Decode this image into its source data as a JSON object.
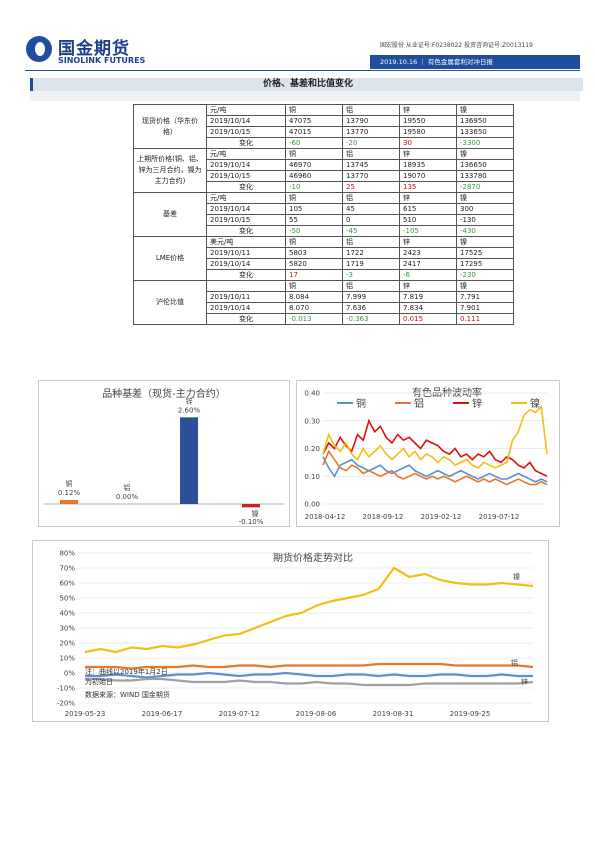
{
  "header": {
    "logo_cn": "国金期货",
    "logo_en": "SINOLINK FUTURES",
    "top_line": "国宏股份 从业证号:F0238022 投资咨询证号:Z0013119",
    "date": "2019.10.16",
    "report": "有色金属套利对冲日报"
  },
  "section": {
    "title": "价格、基差和比值变化"
  },
  "table": {
    "groups": [
      {
        "label": "现货价格（华东价格）",
        "rows": [
          {
            "d": "元/吨",
            "v": [
              "铜",
              "铝",
              "锌",
              "镍"
            ],
            "c": [
              "",
              "",
              "",
              ""
            ]
          },
          {
            "d": "2019/10/14",
            "v": [
              "47075",
              "13790",
              "19550",
              "136950"
            ],
            "c": [
              "",
              "",
              "",
              ""
            ]
          },
          {
            "d": "2019/10/15",
            "v": [
              "47015",
              "13770",
              "19580",
              "133650"
            ],
            "c": [
              "",
              "",
              "",
              ""
            ]
          },
          {
            "d": "变化",
            "v": [
              "-60",
              "-20",
              "30",
              "-3300"
            ],
            "c": [
              "green",
              "green",
              "red",
              "green"
            ]
          }
        ]
      },
      {
        "label": "上期所价格(铜、铝、锌为三月合约，镍为主力合约)",
        "rows": [
          {
            "d": "元/吨",
            "v": [
              "铜",
              "铝",
              "锌",
              "镍"
            ],
            "c": [
              "",
              "",
              "",
              ""
            ]
          },
          {
            "d": "2019/10/14",
            "v": [
              "46970",
              "13745",
              "18935",
              "136650"
            ],
            "c": [
              "",
              "",
              "",
              ""
            ]
          },
          {
            "d": "2019/10/15",
            "v": [
              "46960",
              "13770",
              "19070",
              "133780"
            ],
            "c": [
              "",
              "",
              "",
              ""
            ]
          },
          {
            "d": "变化",
            "v": [
              "-10",
              "25",
              "135",
              "-2870"
            ],
            "c": [
              "green",
              "red",
              "red",
              "green"
            ]
          }
        ]
      },
      {
        "label": "基差",
        "rows": [
          {
            "d": "元/吨",
            "v": [
              "铜",
              "铝",
              "锌",
              "镍"
            ],
            "c": [
              "",
              "",
              "",
              ""
            ]
          },
          {
            "d": "2019/10/14",
            "v": [
              "105",
              "45",
              "615",
              "300"
            ],
            "c": [
              "",
              "",
              "",
              ""
            ]
          },
          {
            "d": "2019/10/15",
            "v": [
              "55",
              "0",
              "510",
              "-130"
            ],
            "c": [
              "",
              "",
              "",
              ""
            ]
          },
          {
            "d": "变化",
            "v": [
              "-50",
              "-45",
              "-105",
              "-430"
            ],
            "c": [
              "green",
              "green",
              "green",
              "green"
            ]
          }
        ]
      },
      {
        "label": "LME价格",
        "rows": [
          {
            "d": "美元/吨",
            "v": [
              "铜",
              "铝",
              "锌",
              "镍"
            ],
            "c": [
              "",
              "",
              "",
              ""
            ]
          },
          {
            "d": "2019/10/11",
            "v": [
              "5803",
              "1722",
              "2423",
              "17525"
            ],
            "c": [
              "",
              "",
              "",
              ""
            ]
          },
          {
            "d": "2019/10/14",
            "v": [
              "5820",
              "1719",
              "2417",
              "17295"
            ],
            "c": [
              "",
              "",
              "",
              ""
            ]
          },
          {
            "d": "变化",
            "v": [
              "17",
              "-3",
              "-6",
              "-230"
            ],
            "c": [
              "red",
              "green",
              "green",
              "green"
            ]
          }
        ]
      },
      {
        "label": "沪伦比值",
        "rows": [
          {
            "d": "",
            "v": [
              "铜",
              "铝",
              "锌",
              "镍"
            ],
            "c": [
              "",
              "",
              "",
              ""
            ]
          },
          {
            "d": "2019/10/11",
            "v": [
              "8.084",
              "7.999",
              "7.819",
              "7.791"
            ],
            "c": [
              "",
              "",
              "",
              ""
            ]
          },
          {
            "d": "2019/10/14",
            "v": [
              "8.070",
              "7.636",
              "7.834",
              "7.901"
            ],
            "c": [
              "",
              "",
              "",
              ""
            ]
          },
          {
            "d": "变化",
            "v": [
              "-0.013",
              "-0.363",
              "0.015",
              "0.111"
            ],
            "c": [
              "green",
              "green",
              "red",
              "red"
            ]
          }
        ]
      }
    ]
  },
  "chart_data": [
    {
      "type": "bar",
      "title": "品种基差（现货-主力合约）",
      "categories": [
        "铜",
        "铝",
        "锌",
        "镍"
      ],
      "values": [
        0.12,
        0.0,
        2.6,
        -0.1
      ],
      "value_labels": [
        "0.12%",
        "0.00%",
        "2.60%",
        "-0.10%"
      ],
      "colors": [
        "#e8772e",
        "#a0a0a0",
        "#2e4f9a",
        "#d02020"
      ],
      "ylim": [
        -0.3,
        3.0
      ]
    },
    {
      "type": "line",
      "title": "有色品种波动率",
      "legend": [
        "铜",
        "铝",
        "锌",
        "镍"
      ],
      "colors": [
        "#5b8fd0",
        "#e8772e",
        "#e01010",
        "#f2c010"
      ],
      "x_ticks": [
        "2018-04-12",
        "2018-09-12",
        "2019-02-12",
        "2019-07-12"
      ],
      "y_ticks": [
        "0.00",
        "0.10",
        "0.20",
        "0.30",
        "0.40"
      ],
      "ylim": [
        0,
        0.4
      ],
      "series": [
        {
          "name": "铜",
          "values": [
            0.17,
            0.13,
            0.1,
            0.14,
            0.15,
            0.16,
            0.14,
            0.13,
            0.12,
            0.13,
            0.14,
            0.12,
            0.11,
            0.12,
            0.13,
            0.14,
            0.12,
            0.11,
            0.1,
            0.11,
            0.12,
            0.11,
            0.1,
            0.11,
            0.12,
            0.11,
            0.1,
            0.09,
            0.1,
            0.11,
            0.1,
            0.09,
            0.09,
            0.1,
            0.11,
            0.1,
            0.09,
            0.08,
            0.09,
            0.08
          ]
        },
        {
          "name": "铝",
          "values": [
            0.14,
            0.19,
            0.16,
            0.13,
            0.12,
            0.14,
            0.13,
            0.11,
            0.12,
            0.11,
            0.1,
            0.11,
            0.12,
            0.1,
            0.09,
            0.1,
            0.11,
            0.1,
            0.09,
            0.1,
            0.09,
            0.1,
            0.09,
            0.08,
            0.09,
            0.1,
            0.09,
            0.08,
            0.09,
            0.08,
            0.09,
            0.08,
            0.07,
            0.08,
            0.09,
            0.08,
            0.07,
            0.07,
            0.08,
            0.07
          ]
        },
        {
          "name": "锌",
          "values": [
            0.18,
            0.22,
            0.2,
            0.24,
            0.21,
            0.19,
            0.25,
            0.23,
            0.3,
            0.26,
            0.28,
            0.24,
            0.22,
            0.25,
            0.23,
            0.24,
            0.22,
            0.2,
            0.23,
            0.22,
            0.21,
            0.19,
            0.18,
            0.2,
            0.17,
            0.18,
            0.16,
            0.18,
            0.17,
            0.19,
            0.16,
            0.15,
            0.17,
            0.16,
            0.14,
            0.13,
            0.15,
            0.12,
            0.11,
            0.1
          ]
        },
        {
          "name": "镍",
          "values": [
            0.18,
            0.25,
            0.21,
            0.19,
            0.22,
            0.18,
            0.16,
            0.2,
            0.17,
            0.19,
            0.21,
            0.18,
            0.16,
            0.18,
            0.2,
            0.17,
            0.19,
            0.16,
            0.18,
            0.17,
            0.15,
            0.17,
            0.16,
            0.14,
            0.15,
            0.16,
            0.14,
            0.13,
            0.15,
            0.14,
            0.13,
            0.14,
            0.15,
            0.23,
            0.26,
            0.32,
            0.34,
            0.33,
            0.35,
            0.18
          ]
        }
      ]
    },
    {
      "type": "line",
      "title": "期货价格走势对比",
      "x_ticks": [
        "2019-05-23",
        "2019-06-17",
        "2019-07-12",
        "2019-08-06",
        "2019-08-31",
        "2019-09-25"
      ],
      "y_ticks": [
        "80%",
        "70%",
        "60%",
        "50%",
        "40%",
        "30%",
        "20%",
        "10%",
        "0%",
        "-10%",
        "-20%"
      ],
      "ylim": [
        -20,
        80
      ],
      "annotation": "注：曲线以2019年1月2日为初始日",
      "source": "数据来源：WIND 国金期货",
      "end_labels": [
        "镍",
        "铝",
        "锌"
      ],
      "series": [
        {
          "name": "铜",
          "color": "#5b8fd0",
          "values": [
            -2,
            -2,
            -1,
            -2,
            -3,
            -2,
            -1,
            -1,
            0,
            -1,
            -2,
            -1,
            -1,
            0,
            -1,
            -2,
            -2,
            -1,
            -1,
            -2,
            -1,
            -2,
            -2,
            -1,
            -1,
            -2,
            -2,
            -1,
            -2,
            -2
          ]
        },
        {
          "name": "铝",
          "color": "#e8772e",
          "values": [
            4,
            4,
            4,
            3,
            4,
            4,
            4,
            5,
            4,
            4,
            5,
            5,
            4,
            5,
            5,
            5,
            5,
            5,
            5,
            6,
            6,
            6,
            6,
            6,
            5,
            5,
            5,
            5,
            5,
            4
          ]
        },
        {
          "name": "锌",
          "color": "#a0a0a0",
          "values": [
            -4,
            -4,
            -5,
            -5,
            -4,
            -4,
            -5,
            -6,
            -6,
            -6,
            -5,
            -6,
            -6,
            -7,
            -7,
            -6,
            -7,
            -7,
            -8,
            -8,
            -8,
            -8,
            -7,
            -7,
            -7,
            -7,
            -7,
            -7,
            -7,
            -6
          ]
        },
        {
          "name": "镍",
          "color": "#f2c010",
          "values": [
            14,
            16,
            14,
            17,
            16,
            18,
            17,
            19,
            22,
            25,
            26,
            30,
            34,
            38,
            40,
            45,
            48,
            50,
            52,
            56,
            70,
            64,
            66,
            62,
            60,
            59,
            59,
            60,
            59,
            58
          ]
        }
      ]
    }
  ]
}
